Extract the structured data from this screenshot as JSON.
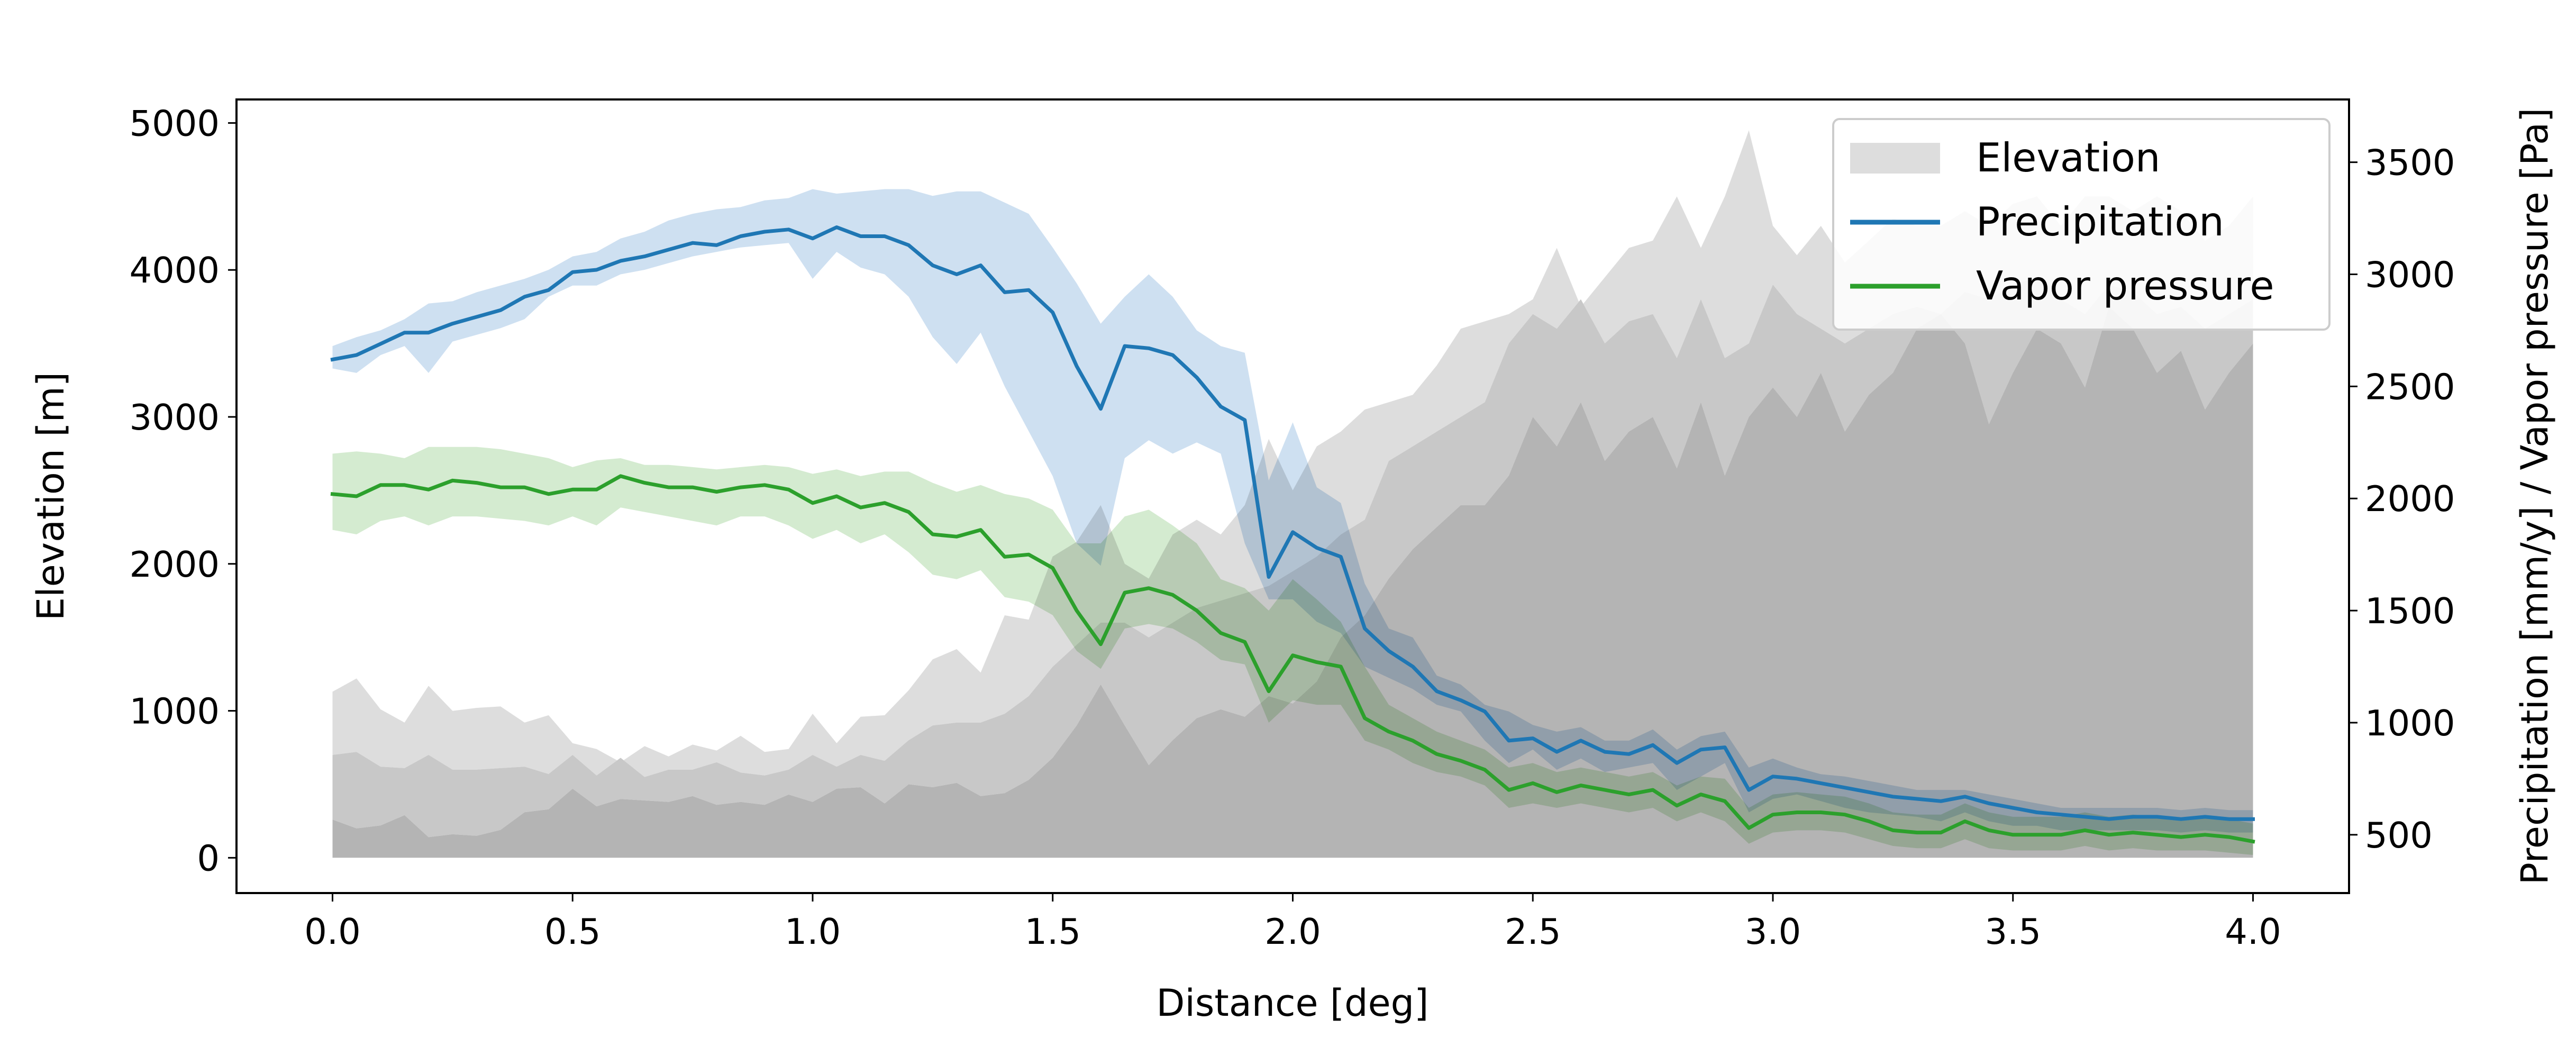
{
  "chart_data": {
    "type": "area",
    "xlabel": "Distance [deg]",
    "ylabel_left": "Elevation [m]",
    "ylabel_right": "Precipitation [mm/y] / Vapor pressure [Pa]",
    "xlim": [
      -0.2,
      4.2
    ],
    "ylim_left": [
      -240,
      5160
    ],
    "ylim_right": [
      240,
      3780
    ],
    "xticks": [
      0.0,
      0.5,
      1.0,
      1.5,
      2.0,
      2.5,
      3.0,
      3.5,
      4.0
    ],
    "xtick_labels": [
      "0.0",
      "0.5",
      "1.0",
      "1.5",
      "2.0",
      "2.5",
      "3.0",
      "3.5",
      "4.0"
    ],
    "yticks_left": [
      0,
      1000,
      2000,
      3000,
      4000,
      5000
    ],
    "ytick_labels_left": [
      "0",
      "1000",
      "2000",
      "3000",
      "4000",
      "5000"
    ],
    "yticks_right": [
      500,
      1000,
      1500,
      2000,
      2500,
      3000,
      3500
    ],
    "ytick_labels_right": [
      "500",
      "1000",
      "1500",
      "2000",
      "2500",
      "3000",
      "3500"
    ],
    "grid": false,
    "legend_position": "top-right",
    "legend": [
      {
        "label": "Elevation",
        "kind": "patch",
        "color": "#dddddd"
      },
      {
        "label": "Precipitation",
        "kind": "line",
        "color": "#1f77b4"
      },
      {
        "label": "Vapor pressure",
        "kind": "line",
        "color": "#2ca02c"
      }
    ],
    "x": [
      0.0,
      0.05,
      0.1,
      0.15,
      0.2,
      0.25,
      0.3,
      0.35,
      0.4,
      0.45,
      0.5,
      0.55,
      0.6,
      0.65,
      0.7,
      0.75,
      0.8,
      0.85,
      0.9,
      0.95,
      1.0,
      1.05,
      1.1,
      1.15,
      1.2,
      1.25,
      1.3,
      1.35,
      1.4,
      1.45,
      1.5,
      1.55,
      1.6,
      1.65,
      1.7,
      1.75,
      1.8,
      1.85,
      1.9,
      1.95,
      2.0,
      2.05,
      2.1,
      2.15,
      2.2,
      2.25,
      2.3,
      2.35,
      2.4,
      2.45,
      2.5,
      2.55,
      2.6,
      2.65,
      2.7,
      2.75,
      2.8,
      2.85,
      2.9,
      2.95,
      3.0,
      3.05,
      3.1,
      3.15,
      3.2,
      3.25,
      3.3,
      3.35,
      3.4,
      3.45,
      3.5,
      3.55,
      3.6,
      3.65,
      3.7,
      3.75,
      3.8,
      3.85,
      3.9,
      3.95,
      4.0
    ],
    "elevation": {
      "color_light": "#dddddd",
      "color_mid": "#c8c8c8",
      "color_dark": "#b4b4b4",
      "min": [
        0,
        0,
        0,
        0,
        0,
        0,
        0,
        0,
        0,
        0,
        0,
        0,
        0,
        0,
        0,
        0,
        0,
        0,
        0,
        0,
        0,
        0,
        0,
        0,
        0,
        0,
        0,
        0,
        0,
        0,
        0,
        0,
        0,
        0,
        0,
        0,
        0,
        0,
        0,
        0,
        0,
        0,
        0,
        0,
        0,
        0,
        0,
        0,
        0,
        0,
        0,
        0,
        0,
        0,
        0,
        0,
        0,
        0,
        0,
        0,
        0,
        0,
        0,
        0,
        0,
        0,
        0,
        0,
        0,
        0,
        0,
        0,
        0,
        0,
        0,
        0,
        0,
        0,
        0,
        0,
        0
      ],
      "q25": [
        260,
        200,
        220,
        290,
        140,
        160,
        150,
        190,
        310,
        330,
        470,
        350,
        400,
        390,
        380,
        420,
        360,
        380,
        360,
        430,
        380,
        470,
        480,
        370,
        500,
        480,
        510,
        420,
        440,
        530,
        680,
        900,
        1180,
        900,
        630,
        800,
        950,
        1010,
        960,
        1100,
        1050,
        1200,
        1500,
        1650,
        1900,
        2100,
        2250,
        2400,
        2400,
        2600,
        3000,
        2800,
        3100,
        2700,
        2900,
        3000,
        2650,
        3100,
        2600,
        3000,
        3200,
        3000,
        3300,
        2900,
        3150,
        3300,
        3600,
        3700,
        3500,
        2950,
        3300,
        3600,
        3500,
        3200,
        3750,
        3600,
        3300,
        3450,
        3050,
        3300,
        3500
      ],
      "median": [
        700,
        720,
        620,
        610,
        700,
        600,
        600,
        610,
        620,
        570,
        700,
        560,
        680,
        550,
        600,
        600,
        650,
        580,
        560,
        600,
        700,
        620,
        700,
        660,
        800,
        900,
        920,
        920,
        980,
        1100,
        1300,
        1450,
        1600,
        1600,
        1500,
        1600,
        1700,
        1750,
        1800,
        1850,
        1950,
        2050,
        2200,
        2300,
        2700,
        2800,
        2900,
        3000,
        3100,
        3500,
        3700,
        3600,
        3800,
        3500,
        3650,
        3700,
        3400,
        3800,
        3400,
        3500,
        3900,
        3700,
        3600,
        3500,
        3600,
        3700,
        3750,
        3700,
        3850,
        3800,
        3900,
        3950,
        3800,
        3700,
        3900,
        3850,
        3700,
        3750,
        3600,
        3700,
        3800
      ],
      "max": [
        1130,
        1220,
        1010,
        920,
        1170,
        1000,
        1020,
        1030,
        920,
        970,
        780,
        740,
        650,
        760,
        690,
        770,
        730,
        830,
        720,
        740,
        980,
        780,
        960,
        970,
        1140,
        1350,
        1420,
        1260,
        1650,
        1620,
        2050,
        2150,
        2400,
        2000,
        1900,
        2200,
        2300,
        2200,
        2400,
        2850,
        2500,
        2800,
        2900,
        3050,
        3100,
        3150,
        3350,
        3600,
        3650,
        3700,
        3800,
        4150,
        3750,
        3950,
        4150,
        4200,
        4500,
        4150,
        4500,
        4950,
        4300,
        4100,
        4300,
        4050,
        4200,
        4350,
        4300,
        4300,
        4400,
        4300,
        4450,
        4500,
        4300,
        4500,
        4500,
        4400,
        4500,
        4400,
        4200,
        4300,
        4500
      ]
    },
    "series": [
      {
        "name": "Precipitation",
        "color": "#1f77b4",
        "band_color": "#c6dbee",
        "values": [
          2620,
          2640,
          2690,
          2740,
          2740,
          2780,
          2810,
          2840,
          2900,
          2930,
          3010,
          3020,
          3060,
          3080,
          3110,
          3140,
          3130,
          3170,
          3190,
          3200,
          3160,
          3210,
          3170,
          3170,
          3130,
          3040,
          3000,
          3040,
          2920,
          2930,
          2830,
          2590,
          2400,
          2680,
          2670,
          2640,
          2540,
          2410,
          2350,
          1650,
          1850,
          1780,
          1740,
          1420,
          1320,
          1250,
          1140,
          1100,
          1050,
          920,
          930,
          870,
          920,
          870,
          860,
          900,
          820,
          880,
          890,
          700,
          760,
          750,
          730,
          710,
          690,
          670,
          660,
          650,
          670,
          640,
          620,
          600,
          590,
          580,
          570,
          580,
          580,
          570,
          580,
          570,
          570
        ],
        "lower": [
          2580,
          2560,
          2640,
          2680,
          2560,
          2700,
          2730,
          2760,
          2800,
          2900,
          2950,
          2950,
          3000,
          3020,
          3050,
          3080,
          3100,
          3120,
          3130,
          3140,
          2980,
          3100,
          3030,
          3000,
          2900,
          2720,
          2600,
          2740,
          2500,
          2300,
          2100,
          1800,
          1700,
          2180,
          2260,
          2200,
          2250,
          2200,
          1800,
          1550,
          1550,
          1450,
          1400,
          1250,
          1200,
          1150,
          1080,
          1050,
          920,
          820,
          880,
          790,
          840,
          780,
          800,
          820,
          700,
          760,
          820,
          600,
          660,
          680,
          650,
          620,
          600,
          590,
          580,
          560,
          600,
          560,
          540,
          540,
          520,
          520,
          520,
          520,
          520,
          510,
          520,
          510,
          510
        ],
        "upper": [
          2680,
          2720,
          2750,
          2800,
          2870,
          2880,
          2920,
          2950,
          2980,
          3020,
          3080,
          3100,
          3160,
          3190,
          3240,
          3270,
          3290,
          3300,
          3330,
          3340,
          3380,
          3360,
          3370,
          3380,
          3380,
          3350,
          3370,
          3370,
          3320,
          3270,
          3120,
          2960,
          2780,
          2900,
          3000,
          2900,
          2750,
          2680,
          2650,
          2080,
          2340,
          2050,
          1980,
          1620,
          1420,
          1380,
          1210,
          1170,
          1080,
          1050,
          990,
          960,
          980,
          920,
          920,
          970,
          880,
          940,
          960,
          800,
          840,
          800,
          770,
          760,
          740,
          720,
          700,
          700,
          700,
          680,
          660,
          640,
          620,
          620,
          620,
          620,
          620,
          610,
          620,
          610,
          610
        ]
      },
      {
        "name": "Vapor pressure",
        "color": "#2ca02c",
        "band_color": "#cce8c8",
        "values": [
          2020,
          2010,
          2060,
          2060,
          2040,
          2080,
          2070,
          2050,
          2050,
          2020,
          2040,
          2040,
          2100,
          2070,
          2050,
          2050,
          2030,
          2050,
          2060,
          2040,
          1980,
          2010,
          1960,
          1980,
          1940,
          1840,
          1830,
          1860,
          1740,
          1750,
          1690,
          1500,
          1350,
          1580,
          1600,
          1570,
          1500,
          1400,
          1360,
          1140,
          1300,
          1270,
          1250,
          1020,
          960,
          920,
          860,
          830,
          790,
          700,
          730,
          690,
          720,
          700,
          680,
          700,
          630,
          680,
          650,
          530,
          590,
          600,
          600,
          590,
          560,
          520,
          510,
          510,
          560,
          520,
          500,
          500,
          500,
          520,
          500,
          510,
          500,
          490,
          500,
          490,
          470
        ],
        "lower": [
          1860,
          1840,
          1900,
          1920,
          1880,
          1920,
          1920,
          1910,
          1900,
          1880,
          1920,
          1880,
          1960,
          1940,
          1920,
          1900,
          1880,
          1920,
          1920,
          1880,
          1820,
          1860,
          1800,
          1840,
          1760,
          1660,
          1640,
          1680,
          1560,
          1540,
          1480,
          1320,
          1240,
          1420,
          1440,
          1420,
          1360,
          1280,
          1260,
          1000,
          1100,
          1080,
          1080,
          920,
          880,
          820,
          780,
          760,
          720,
          620,
          640,
          620,
          640,
          620,
          600,
          620,
          560,
          600,
          560,
          460,
          510,
          520,
          520,
          510,
          480,
          450,
          440,
          440,
          480,
          440,
          430,
          430,
          430,
          450,
          430,
          440,
          430,
          430,
          430,
          420,
          410
        ],
        "upper": [
          2200,
          2210,
          2200,
          2180,
          2230,
          2230,
          2230,
          2220,
          2200,
          2180,
          2140,
          2170,
          2180,
          2150,
          2150,
          2140,
          2130,
          2140,
          2150,
          2140,
          2110,
          2130,
          2100,
          2120,
          2120,
          2070,
          2030,
          2060,
          2020,
          2000,
          1950,
          1800,
          1800,
          1920,
          1950,
          1880,
          1800,
          1640,
          1600,
          1500,
          1640,
          1550,
          1450,
          1250,
          1080,
          1020,
          960,
          920,
          880,
          800,
          820,
          780,
          800,
          780,
          760,
          780,
          720,
          760,
          750,
          620,
          680,
          690,
          680,
          670,
          640,
          600,
          590,
          590,
          640,
          600,
          580,
          580,
          580,
          600,
          580,
          590,
          580,
          570,
          580,
          570,
          550
        ]
      }
    ]
  }
}
